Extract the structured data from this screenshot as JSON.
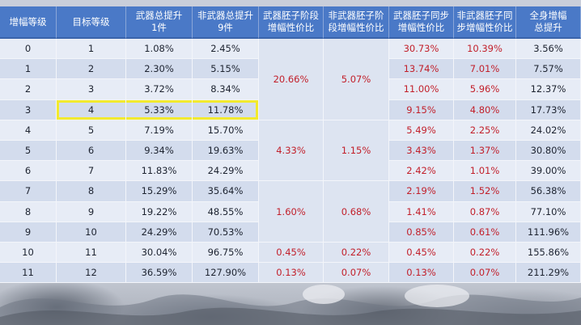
{
  "headers": [
    "增幅等级",
    "目标等级",
    "武器总提升\n1件",
    "非武器总提升\n9件",
    "武器胚子阶段\n增幅性价比",
    "非武器胚子阶\n段增幅性价比",
    "武器胚子同步\n增幅性价比",
    "非武器胚子同\n步增幅性价比",
    "全身增幅\n总提升"
  ],
  "rows": [
    {
      "level": "0",
      "target": "1",
      "weapon_total": "1.08%",
      "nonweapon_total": "2.45%",
      "weapon_sync": "30.73%",
      "nonweapon_sync": "10.39%",
      "full_total": "3.56%"
    },
    {
      "level": "1",
      "target": "2",
      "weapon_total": "2.30%",
      "nonweapon_total": "5.15%",
      "weapon_sync": "13.74%",
      "nonweapon_sync": "7.01%",
      "full_total": "7.57%"
    },
    {
      "level": "2",
      "target": "3",
      "weapon_total": "3.72%",
      "nonweapon_total": "8.34%",
      "weapon_sync": "11.00%",
      "nonweapon_sync": "5.96%",
      "full_total": "12.37%"
    },
    {
      "level": "3",
      "target": "4",
      "weapon_total": "5.33%",
      "nonweapon_total": "11.78%",
      "weapon_sync": "9.15%",
      "nonweapon_sync": "4.80%",
      "full_total": "17.73%"
    },
    {
      "level": "4",
      "target": "5",
      "weapon_total": "7.19%",
      "nonweapon_total": "15.70%",
      "weapon_sync": "5.49%",
      "nonweapon_sync": "2.25%",
      "full_total": "24.02%"
    },
    {
      "level": "5",
      "target": "6",
      "weapon_total": "9.34%",
      "nonweapon_total": "19.63%",
      "weapon_sync": "3.43%",
      "nonweapon_sync": "1.37%",
      "full_total": "30.80%"
    },
    {
      "level": "6",
      "target": "7",
      "weapon_total": "11.83%",
      "nonweapon_total": "24.29%",
      "weapon_sync": "2.42%",
      "nonweapon_sync": "1.01%",
      "full_total": "39.00%"
    },
    {
      "level": "7",
      "target": "8",
      "weapon_total": "15.29%",
      "nonweapon_total": "35.64%",
      "weapon_sync": "2.19%",
      "nonweapon_sync": "1.52%",
      "full_total": "56.38%"
    },
    {
      "level": "8",
      "target": "9",
      "weapon_total": "19.22%",
      "nonweapon_total": "48.55%",
      "weapon_sync": "1.41%",
      "nonweapon_sync": "0.87%",
      "full_total": "77.10%"
    },
    {
      "level": "9",
      "target": "10",
      "weapon_total": "24.29%",
      "nonweapon_total": "70.53%",
      "weapon_sync": "0.85%",
      "nonweapon_sync": "0.61%",
      "full_total": "111.96%"
    },
    {
      "level": "10",
      "target": "11",
      "weapon_total": "30.04%",
      "nonweapon_total": "96.75%",
      "weapon_sync": "0.45%",
      "nonweapon_sync": "0.22%",
      "full_total": "155.86%"
    },
    {
      "level": "11",
      "target": "12",
      "weapon_total": "36.59%",
      "nonweapon_total": "127.90%",
      "weapon_sync": "0.13%",
      "nonweapon_sync": "0.07%",
      "full_total": "211.29%"
    }
  ],
  "stage_groups": [
    {
      "rows": 4,
      "weapon_stage": "20.66%",
      "nonweapon_stage": "5.07%"
    },
    {
      "rows": 3,
      "weapon_stage": "4.33%",
      "nonweapon_stage": "1.15%"
    },
    {
      "rows": 3,
      "weapon_stage": "1.60%",
      "nonweapon_stage": "0.68%"
    },
    {
      "rows": 1,
      "weapon_stage": "0.45%",
      "nonweapon_stage": "0.22%"
    },
    {
      "rows": 1,
      "weapon_stage": "0.13%",
      "nonweapon_stage": "0.07%"
    }
  ],
  "highlighted_row": 3,
  "colors": {
    "header_bg": "#4a79c7",
    "header_text": "#ffffff",
    "row_light": "#e7ecf6",
    "row_dark": "#d3dced",
    "red_value": "#c21f2a",
    "highlight": "#f2ea2e"
  }
}
